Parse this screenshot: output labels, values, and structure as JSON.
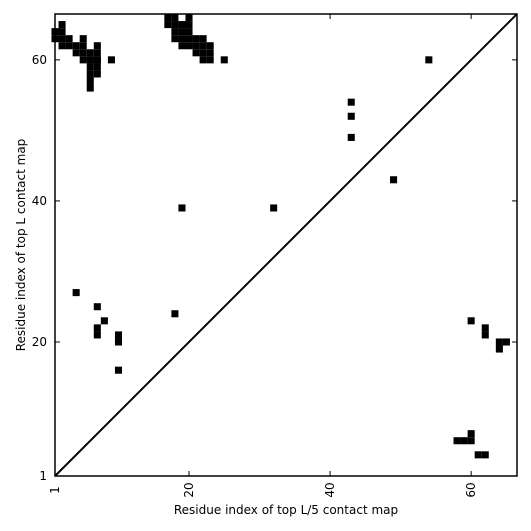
{
  "chart_data": {
    "type": "heatmap",
    "title": "",
    "xlabel": "Residue index of top L/5 contact map",
    "ylabel": "Residue index of top L contact map",
    "xlim": [
      1,
      66.5
    ],
    "ylim": [
      1,
      66.5
    ],
    "x_ticks": [
      1,
      20,
      40,
      60
    ],
    "y_ticks": [
      1,
      20,
      40,
      60
    ],
    "x_tick_labels": [
      "1",
      "20",
      "40",
      "60"
    ],
    "y_tick_labels": [
      "1",
      "20",
      "40",
      "60"
    ],
    "x_tick_rotation": -90,
    "diagonal": true,
    "cell_color": "#000000",
    "background_color": "#ffffff",
    "upper_cells": [
      [
        1,
        63
      ],
      [
        1,
        64
      ],
      [
        2,
        62
      ],
      [
        2,
        63
      ],
      [
        2,
        64
      ],
      [
        2,
        65
      ],
      [
        3,
        62
      ],
      [
        3,
        63
      ],
      [
        4,
        61
      ],
      [
        4,
        62
      ],
      [
        5,
        60
      ],
      [
        5,
        61
      ],
      [
        5,
        62
      ],
      [
        5,
        63
      ],
      [
        6,
        60
      ],
      [
        7,
        60
      ],
      [
        6,
        56
      ],
      [
        6,
        57
      ],
      [
        6,
        58
      ],
      [
        6,
        59
      ],
      [
        6,
        60
      ],
      [
        6,
        61
      ],
      [
        7,
        58
      ],
      [
        7,
        59
      ],
      [
        7,
        60
      ],
      [
        7,
        61
      ],
      [
        7,
        62
      ],
      [
        9,
        60
      ],
      [
        17,
        65
      ],
      [
        17,
        66
      ],
      [
        18,
        63
      ],
      [
        18,
        64
      ],
      [
        18,
        65
      ],
      [
        18,
        66
      ],
      [
        19,
        62
      ],
      [
        19,
        63
      ],
      [
        19,
        64
      ],
      [
        19,
        65
      ],
      [
        20,
        62
      ],
      [
        20,
        63
      ],
      [
        20,
        64
      ],
      [
        20,
        65
      ],
      [
        20,
        66
      ],
      [
        21,
        61
      ],
      [
        21,
        62
      ],
      [
        21,
        63
      ],
      [
        22,
        60
      ],
      [
        22,
        61
      ],
      [
        22,
        62
      ],
      [
        22,
        63
      ],
      [
        23,
        60
      ],
      [
        23,
        61
      ],
      [
        23,
        62
      ],
      [
        25,
        60
      ],
      [
        43,
        54
      ],
      [
        43,
        52
      ],
      [
        43,
        49
      ],
      [
        49,
        43
      ],
      [
        54,
        60
      ],
      [
        19,
        39
      ],
      [
        32,
        39
      ]
    ],
    "lower_cells": [
      [
        4,
        27
      ],
      [
        7,
        25
      ],
      [
        18,
        24
      ],
      [
        8,
        23
      ],
      [
        7,
        22
      ],
      [
        7,
        21
      ],
      [
        10,
        21
      ],
      [
        10,
        20
      ],
      [
        10,
        16
      ],
      [
        60,
        23
      ],
      [
        62,
        22
      ],
      [
        62,
        21
      ],
      [
        64,
        20
      ],
      [
        65,
        20
      ],
      [
        64,
        19
      ],
      [
        58,
        6
      ],
      [
        59,
        6
      ],
      [
        60,
        6
      ],
      [
        60,
        7
      ],
      [
        61,
        4
      ],
      [
        62,
        4
      ]
    ]
  }
}
